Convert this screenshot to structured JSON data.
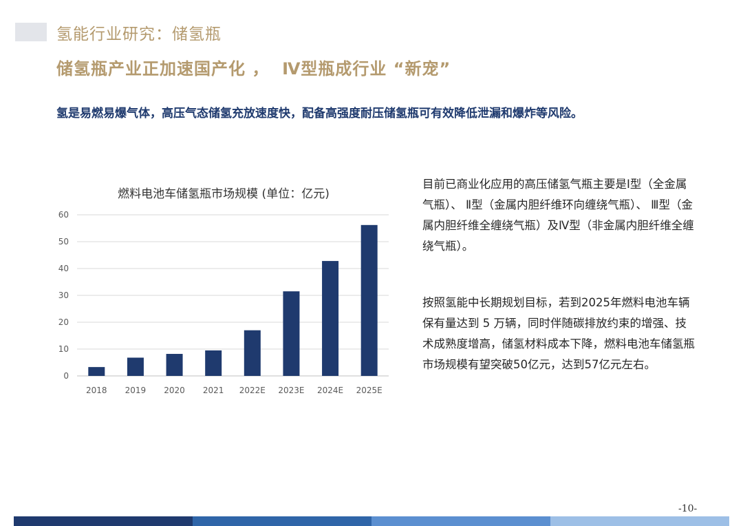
{
  "header": {
    "title": "氢能行业研究：储氢瓶",
    "subtitle": "储氢瓶产业正加速国产化 ，  Ⅳ型瓶成行业 “新宠”"
  },
  "lead_text": "氢是易燃易爆气体，高压气态储氢充放速度快，配备高强度耐压储氢瓶可有效降低泄漏和爆炸等风险。",
  "chart_data": {
    "type": "bar",
    "title": "燃料电池车储氢瓶市场规模 (单位：亿元)",
    "categories": [
      "2018",
      "2019",
      "2020",
      "2021",
      "2022E",
      "2023E",
      "2024E",
      "2025E"
    ],
    "values": [
      3.3,
      6.8,
      8.2,
      9.5,
      17,
      31.5,
      42.8,
      56.2
    ],
    "ylim": [
      0,
      60
    ],
    "yticks": [
      "0",
      "10",
      "20",
      "30",
      "40",
      "50",
      "60"
    ],
    "grid": true,
    "bar_color": "#1f3a6e",
    "xlabel": "",
    "ylabel": ""
  },
  "description": {
    "p1": "目前已商业化应用的高压储氢气瓶主要是Ⅰ型（全金属气瓶）、 Ⅱ型（金属内胆纤维环向缠绕气瓶）、 Ⅲ型（金属内胆纤维全缠绕气瓶）及Ⅳ型（非金属内胆纤维全缠绕气瓶）。",
    "p2": "按照氢能中长期规划目标，若到2025年燃料电池车辆保有量达到 5 万辆，同时伴随碳排放约束的增强、技术成熟度增高，储氢材料成本下降，燃料电池车储氢瓶市场规模有望突破50亿元，达到57亿元左右。"
  },
  "page_number": "-10-",
  "colors": {
    "accent_gold": "#b49a6e",
    "navy": "#1f3a6e",
    "footer": [
      "#1f3a6e",
      "#2f65a8",
      "#5b8fd0",
      "#9dbfe6"
    ]
  }
}
